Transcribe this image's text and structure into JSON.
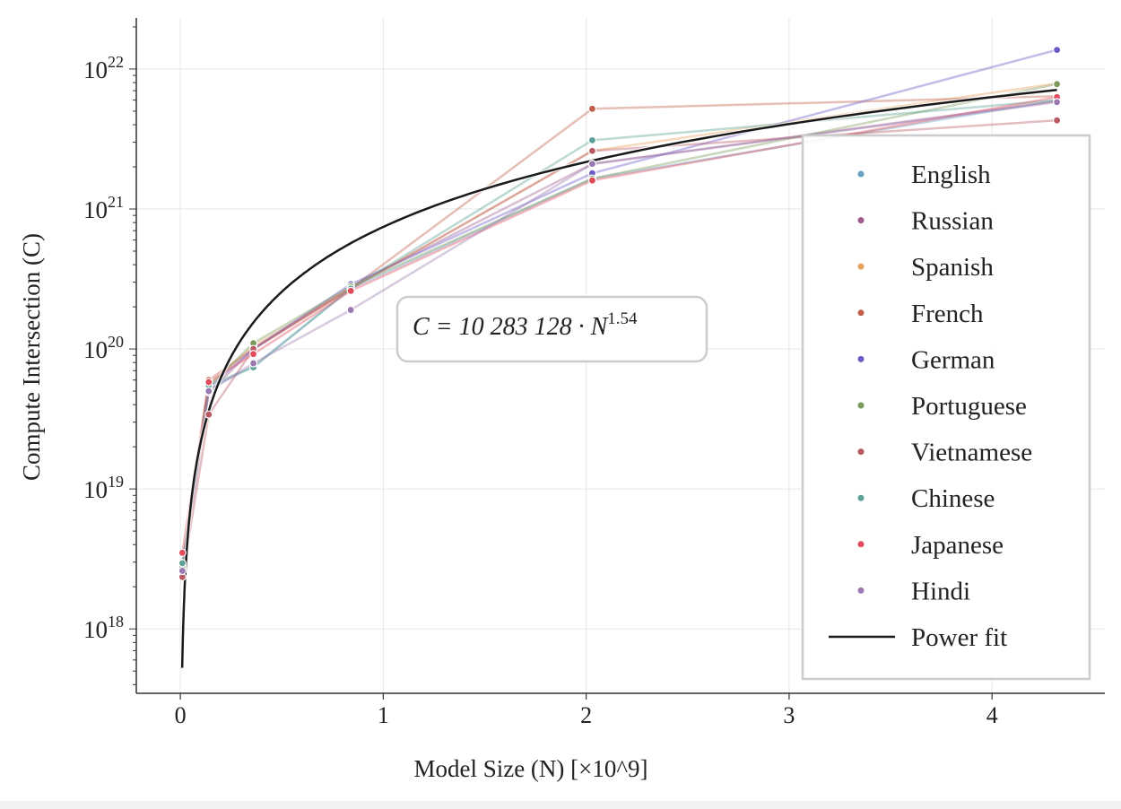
{
  "chart_data": {
    "type": "line",
    "title": "",
    "xlabel": "Model Size (N) [×10^9]",
    "ylabel": "Compute Intersection (C)",
    "xlim": [
      -0.217,
      4.556
    ],
    "ylim_log10": [
      17.54,
      22.365
    ],
    "yscale": "log",
    "grid": true,
    "x_ticks": [
      0,
      1,
      2,
      3,
      4
    ],
    "x_tick_labels": [
      "0",
      "1",
      "2",
      "3",
      "4"
    ],
    "y_ticks_log10": [
      18,
      19,
      20,
      21,
      22
    ],
    "y_tick_labels": [
      [
        "10",
        "18"
      ],
      [
        "10",
        "19"
      ],
      [
        "10",
        "20"
      ],
      [
        "10",
        "21"
      ],
      [
        "10",
        "22"
      ]
    ],
    "x": [
      0.01,
      0.14,
      0.36,
      0.84,
      2.03,
      4.32
    ],
    "series": [
      {
        "name": "English",
        "color": "#6a9ec0",
        "values": [
          2.9e+18,
          5.2e+19,
          7.5e+19,
          2.7e+20,
          1.65e+21,
          6e+21
        ]
      },
      {
        "name": "Russian",
        "color": "#a05a8c",
        "values": [
          2.7e+18,
          4.9e+19,
          1e+20,
          2.8e+20,
          2.1e+21,
          5.9e+21
        ]
      },
      {
        "name": "Spanish",
        "color": "#e8a05a",
        "values": [
          2.8e+18,
          5.5e+19,
          1.05e+20,
          2.7e+20,
          2.6e+21,
          7.9e+21
        ]
      },
      {
        "name": "French",
        "color": "#c0604a",
        "values": [
          2.7e+18,
          6e+19,
          1e+20,
          2.7e+20,
          5.2e+21,
          6.4e+21
        ]
      },
      {
        "name": "German",
        "color": "#6a5ac8",
        "values": [
          2.8e+18,
          5.3e+19,
          1e+20,
          2.9e+20,
          1.8e+21,
          1.37e+22
        ]
      },
      {
        "name": "Portuguese",
        "color": "#7a9a5a",
        "values": [
          2.8e+18,
          5.4e+19,
          1.1e+20,
          2.8e+20,
          1.65e+21,
          7.8e+21
        ]
      },
      {
        "name": "Vietnamese",
        "color": "#b85a64",
        "values": [
          2.35e+18,
          3.4e+19,
          1e+20,
          2.7e+20,
          2.6e+21,
          4.3e+21
        ]
      },
      {
        "name": "Chinese",
        "color": "#5aa094",
        "values": [
          2.95e+18,
          5.5e+19,
          7.4e+19,
          2.7e+20,
          3.1e+21,
          6e+21
        ]
      },
      {
        "name": "Japanese",
        "color": "#e04a5a",
        "values": [
          3.5e+18,
          5.8e+19,
          9.2e+19,
          2.6e+20,
          1.6e+21,
          6.3e+21
        ]
      },
      {
        "name": "Hindi",
        "color": "#9a7ab0",
        "values": [
          2.6e+18,
          5e+19,
          7.9e+19,
          1.9e+20,
          2.1e+21,
          5.8e+21
        ]
      }
    ],
    "fit": {
      "name": "Power fit",
      "color": "#1a1a1a",
      "coefficient": 10283128,
      "exponent": 1.54,
      "x_scale": 1000000000.0,
      "x_range": [
        0.009,
        4.32
      ]
    },
    "annotation": {
      "prefix": "C = 10 283 128 · N",
      "exponent": "1.54"
    },
    "legend_placement": "right"
  }
}
